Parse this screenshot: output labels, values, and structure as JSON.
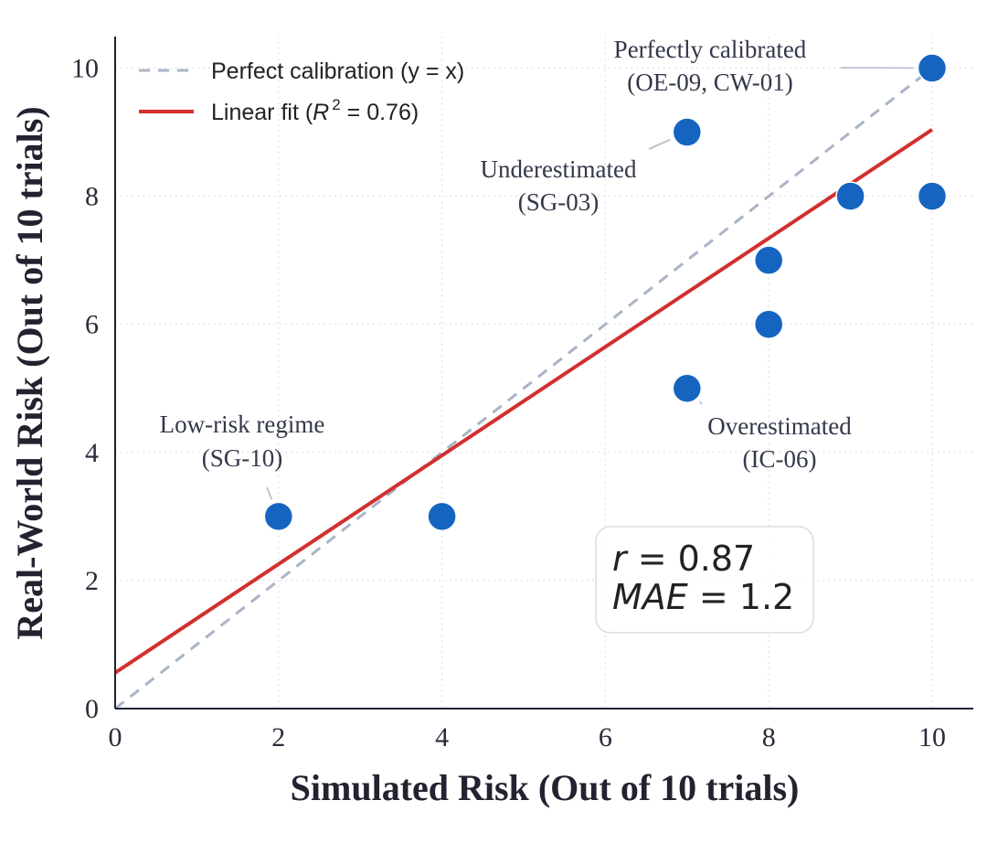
{
  "chart_data": {
    "type": "scatter",
    "xlabel": "Simulated Risk (Out of 10 trials)",
    "ylabel": "Real-World Risk (Out of 10 trials)",
    "xlim": [
      0,
      10.5
    ],
    "ylim": [
      0,
      10.5
    ],
    "xticks": [
      "0",
      "2",
      "4",
      "6",
      "8",
      "10"
    ],
    "yticks": [
      "0",
      "2",
      "4",
      "6",
      "8",
      "10"
    ],
    "grid": true,
    "points": [
      {
        "x": 2,
        "y": 3
      },
      {
        "x": 4,
        "y": 3
      },
      {
        "x": 7,
        "y": 9
      },
      {
        "x": 7,
        "y": 5
      },
      {
        "x": 8,
        "y": 7
      },
      {
        "x": 8,
        "y": 6
      },
      {
        "x": 9,
        "y": 8
      },
      {
        "x": 10,
        "y": 10
      },
      {
        "x": 10,
        "y": 8
      }
    ],
    "point_color": "#1565C0",
    "reference_line": {
      "label": "Perfect calibration (y = x)",
      "slope": 1,
      "intercept": 0,
      "color": "#A9B4C6",
      "style": "dashed"
    },
    "fit_line": {
      "label_prefix": "Linear fit (",
      "r2_symbol": "R",
      "r2_exp": "2",
      "r2_text": " = 0.76)",
      "slope": 0.848,
      "intercept": 0.56,
      "color": "#D32F2F"
    },
    "legend_position": "top-left",
    "annotations": [
      {
        "line1": "Perfectly calibrated",
        "line2": "(OE-09, CW-01)",
        "point_x": 10,
        "point_y": 10
      },
      {
        "line1": "Underestimated",
        "line2": "(SG-03)",
        "point_x": 7,
        "point_y": 9
      },
      {
        "line1": "Low-risk regime",
        "line2": "(SG-10)",
        "point_x": 2,
        "point_y": 3
      },
      {
        "line1": "Overestimated",
        "line2": "(IC-06)",
        "point_x": 7,
        "point_y": 5
      }
    ],
    "stats": {
      "r_symbol": "r",
      "r_value": " = 0.87",
      "mae_symbol": "MAE",
      "mae_value": " = 1.2"
    }
  }
}
